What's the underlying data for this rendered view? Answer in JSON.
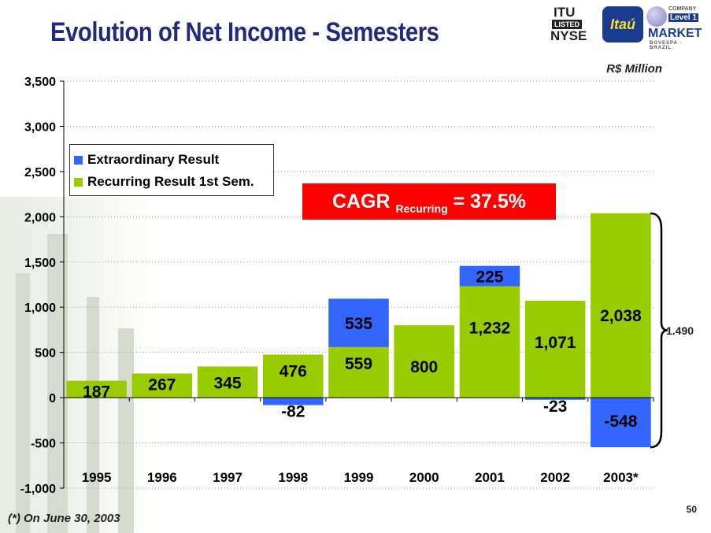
{
  "title": "Evolution of Net Income - Semesters",
  "unit_label": "R$ Million",
  "footnote": "(*) On June 30, 2003",
  "page_number": "50",
  "cagr": {
    "prefix": "CAGR ",
    "sub": "Recurring",
    "suffix": " = 37.5%"
  },
  "bracket_value": "1.490",
  "logos": {
    "nyse": {
      "line1": "ITU",
      "line2": "LISTED",
      "line3": "NYSE"
    },
    "itau": "Itaú",
    "level": {
      "company": "COMPANY",
      "level": "Level 1",
      "market": "MARKET",
      "bovespa": "BOVESPA · BRAZIL"
    }
  },
  "legend": [
    {
      "label": "Extraordinary Result",
      "color": "#3366ff"
    },
    {
      "label": "Recurring Result 1st Sem.",
      "color": "#99cc00"
    }
  ],
  "colors": {
    "recurring": "#99cc00",
    "extraordinary": "#3366ff",
    "gridline": "#999999",
    "accent": "#ff0000"
  },
  "chart_data": {
    "type": "bar",
    "stacked": true,
    "categories": [
      "1995",
      "1996",
      "1997",
      "1998",
      "1999",
      "2000",
      "2001",
      "2002",
      "2003*"
    ],
    "series": [
      {
        "name": "Recurring Result 1st Sem.",
        "values": [
          187,
          267,
          345,
          476,
          559,
          800,
          1232,
          1071,
          2038
        ],
        "labels": [
          "187",
          "267",
          "345",
          "476",
          "559",
          "800",
          "1,232",
          "1,071",
          "2,038"
        ]
      },
      {
        "name": "Extraordinary Result",
        "values": [
          0,
          0,
          0,
          -82,
          535,
          0,
          225,
          -23,
          -548
        ],
        "labels": [
          "",
          "",
          "",
          "-82",
          "535",
          "",
          "225",
          "-23",
          "-548"
        ]
      }
    ],
    "ylim": [
      -1000,
      3500
    ],
    "yticks": [
      3500,
      3000,
      2500,
      2000,
      1500,
      1000,
      500,
      0,
      -500,
      -1000
    ],
    "ytick_labels": [
      "3,500",
      "3,000",
      "2,500",
      "2,000",
      "1,500",
      "1,000",
      "500",
      "0",
      "-500",
      "-1,000"
    ],
    "grid": true,
    "legend_position": "top-left",
    "xlabel": "",
    "ylabel": ""
  }
}
